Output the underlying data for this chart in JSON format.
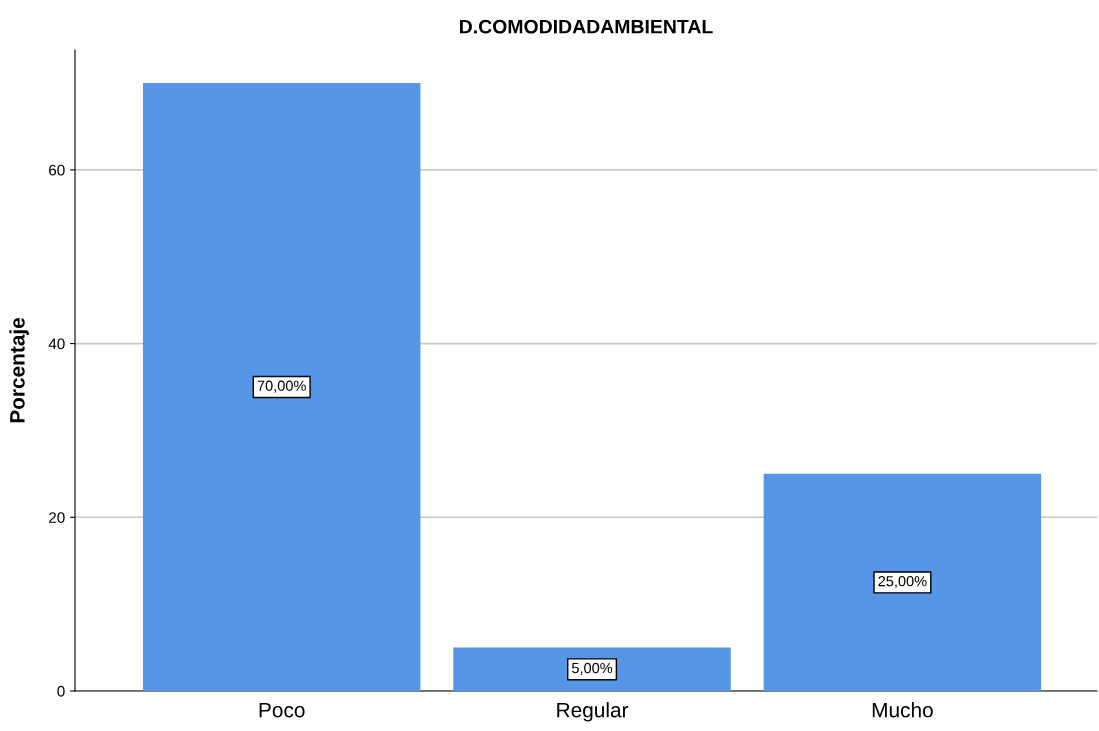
{
  "chart_data": {
    "type": "bar",
    "title": "D.COMODIDADAMBIENTAL",
    "ylabel": "Porcentaje",
    "categories": [
      "Poco",
      "Regular",
      "Mucho"
    ],
    "values": [
      70,
      5,
      25
    ],
    "value_labels": [
      "70,00%",
      "5,00%",
      "25,00%"
    ],
    "color": "#5596e6",
    "ylim": [
      0,
      73.8
    ],
    "yticks": [
      0,
      20,
      40,
      60
    ],
    "grid": "y"
  }
}
